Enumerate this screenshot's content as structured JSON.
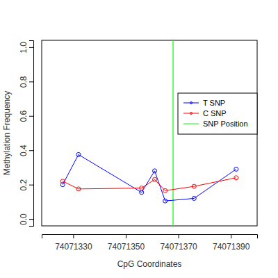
{
  "chart_data": {
    "type": "line",
    "x_label": "CpG Coordinates",
    "y_label": "Methylation Frequency",
    "x": [
      74071326,
      74071332,
      74071356,
      74071361,
      74071365,
      74071376,
      74071392
    ],
    "series": [
      {
        "name": "T SNP",
        "color": "#0000ff",
        "marker": "circle",
        "line_style": "solid",
        "values": [
          0.2,
          0.375,
          0.155,
          0.28,
          0.105,
          0.12,
          0.29
        ]
      },
      {
        "name": "C SNP",
        "color": "#ff0000",
        "marker": "circle",
        "line_style": "solid",
        "values": [
          0.22,
          0.175,
          0.18,
          0.23,
          0.165,
          0.19,
          0.24
        ]
      }
    ],
    "reference_line": {
      "name": "SNP Position",
      "color": "#00ff00",
      "x": 74071368
    },
    "xlim": [
      74071318,
      74071400
    ],
    "xticks": [
      74071330,
      74071350,
      74071370,
      74071390
    ],
    "ylim": [
      -0.04,
      1.04
    ],
    "yticks": [
      {
        "value": 0,
        "label": "0.0"
      },
      0.2,
      0.4,
      0.6,
      0.8,
      {
        "value": 1,
        "label": "1.0"
      }
    ],
    "legend": "right",
    "grid": false
  }
}
